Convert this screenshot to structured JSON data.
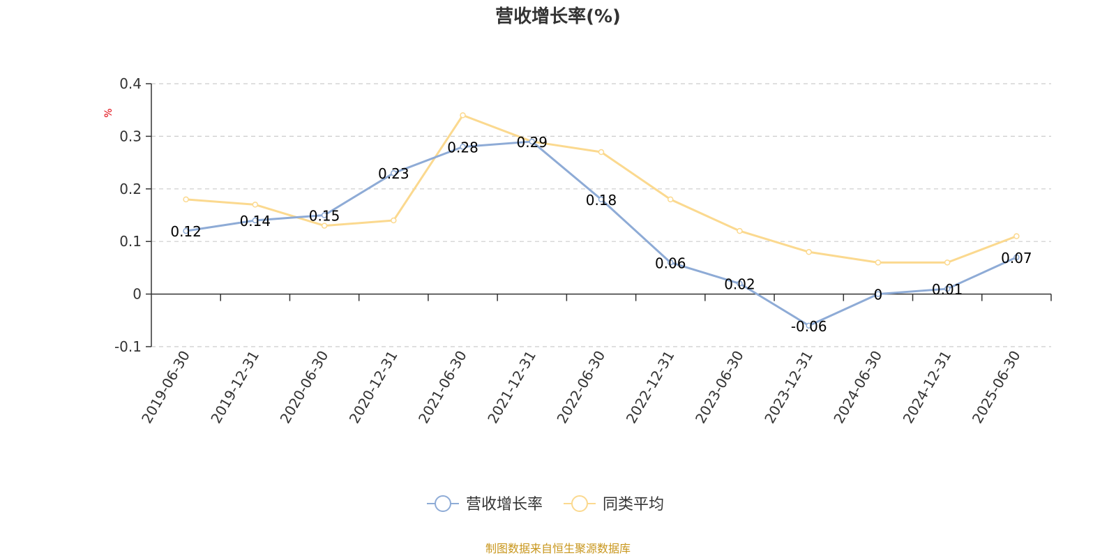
{
  "chart_data": {
    "type": "line",
    "title": "营收增长率(%)",
    "ylabel": "%",
    "xlabel": "",
    "ylim": [
      -0.1,
      0.4
    ],
    "yticks": [
      -0.1,
      0,
      0.1,
      0.2,
      0.3,
      0.4
    ],
    "ytick_labels": [
      "-0.1",
      "0",
      "0.1",
      "0.2",
      "0.3",
      "0.4"
    ],
    "grid": true,
    "legend_position": "bottom-center",
    "categories": [
      "2019-06-30",
      "2019-12-31",
      "2020-06-30",
      "2020-12-31",
      "2021-06-30",
      "2021-12-31",
      "2022-06-30",
      "2022-12-31",
      "2023-06-30",
      "2023-12-31",
      "2024-06-30",
      "2024-12-31",
      "2025-06-30"
    ],
    "series": [
      {
        "name": "营收增长率",
        "color": "#8eabd6",
        "values": [
          0.12,
          0.14,
          0.15,
          0.23,
          0.28,
          0.29,
          0.18,
          0.06,
          0.02,
          -0.06,
          0,
          0.01,
          0.07
        ],
        "labels": [
          "0.12",
          "0.14",
          "0.15",
          "0.23",
          "0.28",
          "0.29",
          "0.18",
          "0.06",
          "0.02",
          "-0.06",
          "0",
          "0.01",
          "0.07"
        ]
      },
      {
        "name": "同类平均",
        "color": "#fbd98f",
        "values": [
          0.18,
          0.17,
          0.13,
          0.14,
          0.34,
          0.29,
          0.27,
          0.18,
          0.12,
          0.08,
          0.06,
          0.06,
          0.11
        ]
      }
    ],
    "source": "制图数据来自恒生聚源数据库",
    "source_color": "#c8961c",
    "unit_color": "#e0000a"
  }
}
